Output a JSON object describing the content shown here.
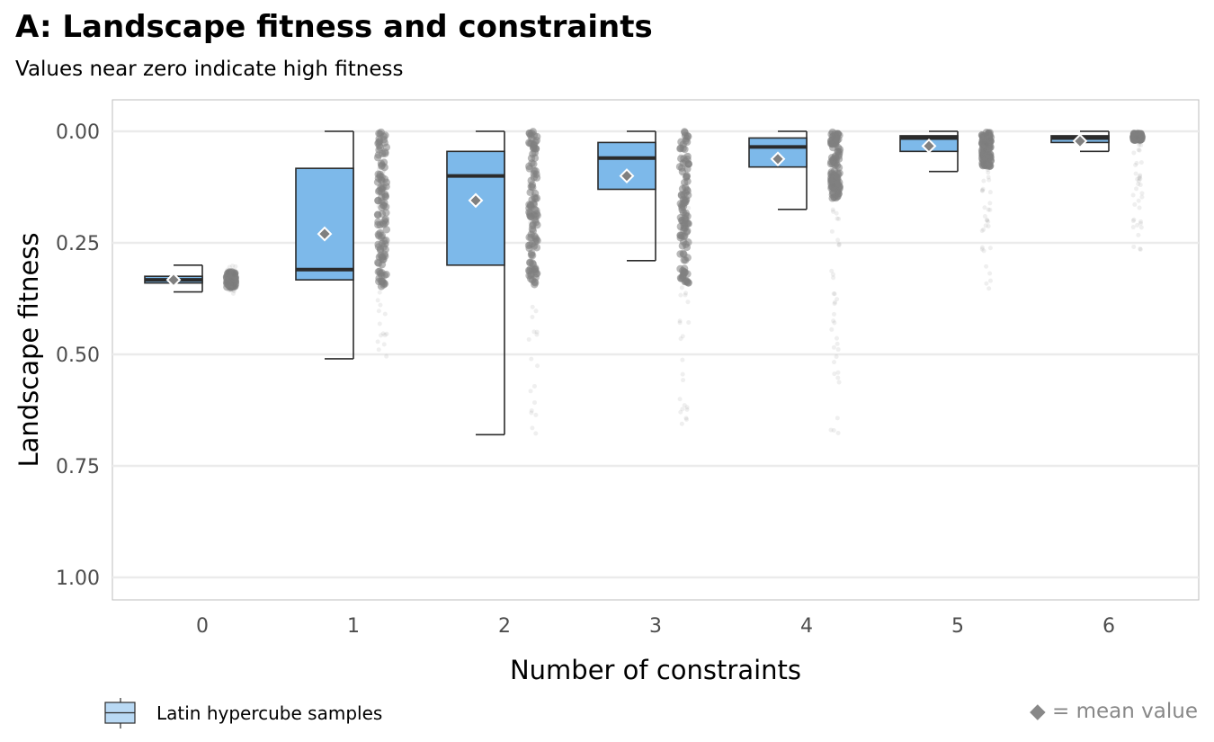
{
  "chart_data": {
    "type": "boxplot",
    "title": "A: Landscape fitness and constraints",
    "subtitle": "Values near zero indicate high fitness",
    "xlabel": "Number of constraints",
    "ylabel": "Landscape fitness",
    "y_reversed": true,
    "ylim": [
      0,
      1
    ],
    "yticks": [
      "0.00",
      "0.25",
      "0.50",
      "0.75",
      "1.00"
    ],
    "ytick_values": [
      0,
      0.25,
      0.5,
      0.75,
      1.0
    ],
    "categories": [
      "0",
      "1",
      "2",
      "3",
      "4",
      "5",
      "6"
    ],
    "grid": "horizontal",
    "legend_position": "bottom-left",
    "colors": {
      "box_fill": "#7db9ea",
      "box_line": "#2b2b2b",
      "mean_marker": "#808080",
      "jitter": "#7f7f7f",
      "grid": "#ebebeb"
    },
    "boxes": [
      {
        "category": "0",
        "whisker_low": 0.3,
        "q1": 0.325,
        "median": 0.333,
        "q3": 0.34,
        "whisker_high": 0.36,
        "mean": 0.333,
        "points_min": 0.3,
        "points_max": 0.37,
        "dense_min": 0.315,
        "dense_max": 0.35
      },
      {
        "category": "1",
        "whisker_low": 0.0,
        "q1": 0.083,
        "median": 0.31,
        "q3": 0.333,
        "whisker_high": 0.51,
        "mean": 0.23,
        "points_min": 0.0,
        "points_max": 0.51,
        "dense_min": 0.0,
        "dense_max": 0.35
      },
      {
        "category": "2",
        "whisker_low": 0.0,
        "q1": 0.045,
        "median": 0.1,
        "q3": 0.3,
        "whisker_high": 0.68,
        "mean": 0.155,
        "points_min": 0.0,
        "points_max": 0.68,
        "dense_min": 0.0,
        "dense_max": 0.35
      },
      {
        "category": "3",
        "whisker_low": 0.0,
        "q1": 0.025,
        "median": 0.06,
        "q3": 0.13,
        "whisker_high": 0.29,
        "mean": 0.1,
        "points_min": 0.0,
        "points_max": 0.68,
        "dense_min": 0.0,
        "dense_max": 0.35
      },
      {
        "category": "4",
        "whisker_low": 0.0,
        "q1": 0.015,
        "median": 0.035,
        "q3": 0.08,
        "whisker_high": 0.175,
        "mean": 0.062,
        "points_min": 0.0,
        "points_max": 0.68,
        "dense_min": 0.0,
        "dense_max": 0.15
      },
      {
        "category": "5",
        "whisker_low": 0.0,
        "q1": 0.01,
        "median": 0.015,
        "q3": 0.045,
        "whisker_high": 0.09,
        "mean": 0.033,
        "points_min": 0.0,
        "points_max": 0.36,
        "dense_min": 0.0,
        "dense_max": 0.08
      },
      {
        "category": "6",
        "whisker_low": 0.0,
        "q1": 0.01,
        "median": 0.015,
        "q3": 0.025,
        "whisker_high": 0.045,
        "mean": 0.022,
        "points_min": 0.0,
        "points_max": 0.27,
        "dense_min": 0.005,
        "dense_max": 0.02
      }
    ],
    "legend": [
      {
        "label": "Latin hypercube samples"
      }
    ],
    "annotation": "◆ = mean value"
  }
}
